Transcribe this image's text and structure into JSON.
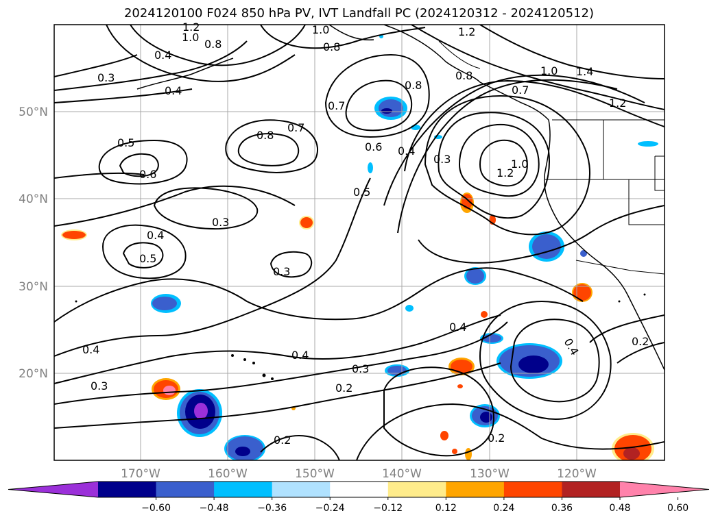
{
  "title": "2024120100 F024 850 hPa PV, IVT Landfall PC (2024120312 - 2024120512)",
  "lon_ticks": [
    "170°W",
    "160°W",
    "150°W",
    "140°W",
    "130°W",
    "120°W"
  ],
  "lat_ticks": [
    "50°N",
    "40°N",
    "30°N",
    "20°N"
  ],
  "colorbar": {
    "tick_labels": [
      "−0.60",
      "−0.48",
      "−0.36",
      "−0.24",
      "−0.12",
      "0.12",
      "0.24",
      "0.36",
      "0.48",
      "0.60"
    ],
    "colors": [
      "#9b30d9",
      "#00008b",
      "#3a5fcd",
      "#00bfff",
      "#b0e2ff",
      "#ffffff",
      "#ffec8b",
      "#ffa500",
      "#ff4500",
      "#b22222",
      "#ff82ab"
    ]
  },
  "contour_labels": [
    "1.2",
    "1.0",
    "0.8",
    "0.4",
    "0.3",
    "0.4",
    "1.0",
    "0.8",
    "1.2",
    "1.0",
    "1.4",
    "1.2",
    "0.8",
    "0.7",
    "0.7",
    "0.8",
    "0.7",
    "0.6",
    "0.5",
    "0.6",
    "0.8",
    "0.4",
    "0.3",
    "1.2",
    "1.0",
    "0.5",
    "0.3",
    "0.4",
    "0.5",
    "0.3",
    "0.4",
    "0.4",
    "0.4",
    "0.3",
    "0.3",
    "0.2",
    "0.2",
    "0.2",
    "0.4",
    "0.2"
  ],
  "colors": {
    "contour": "#000000",
    "grid": "#a9a9a9",
    "coast": "#000000"
  }
}
